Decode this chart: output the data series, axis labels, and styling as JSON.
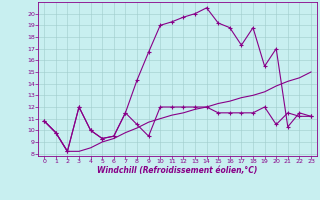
{
  "xlabel": "Windchill (Refroidissement éolien,°C)",
  "xlim": [
    -0.5,
    23.5
  ],
  "ylim": [
    7.8,
    21.0
  ],
  "background_color": "#c8eff0",
  "line_color": "#880088",
  "grid_color": "#a0cccc",
  "line1_x": [
    0,
    1,
    2,
    3,
    4,
    5,
    6,
    7,
    8,
    9,
    10,
    11,
    12,
    13,
    14,
    15,
    16,
    17,
    18,
    19,
    20,
    21,
    22,
    23
  ],
  "line1_y": [
    10.8,
    9.8,
    8.2,
    12.0,
    10.0,
    9.3,
    9.5,
    11.5,
    14.3,
    16.7,
    19.0,
    19.3,
    19.7,
    20.0,
    20.5,
    19.2,
    18.8,
    17.3,
    18.8,
    15.5,
    17.0,
    10.3,
    11.5,
    11.2
  ],
  "line2_x": [
    0,
    1,
    2,
    3,
    4,
    5,
    6,
    7,
    8,
    9,
    10,
    11,
    12,
    13,
    14,
    15,
    16,
    17,
    18,
    19,
    20,
    21,
    22,
    23
  ],
  "line2_y": [
    10.8,
    9.8,
    8.2,
    8.2,
    8.5,
    9.0,
    9.3,
    9.8,
    10.2,
    10.7,
    11.0,
    11.3,
    11.5,
    11.8,
    12.0,
    12.3,
    12.5,
    12.8,
    13.0,
    13.3,
    13.8,
    14.2,
    14.5,
    15.0
  ],
  "line3_x": [
    0,
    1,
    2,
    3,
    4,
    5,
    6,
    7,
    8,
    9,
    10,
    11,
    12,
    13,
    14,
    15,
    16,
    17,
    18,
    19,
    20,
    21,
    22,
    23
  ],
  "line3_y": [
    10.8,
    9.8,
    8.2,
    12.0,
    10.0,
    9.3,
    9.5,
    11.5,
    10.5,
    9.5,
    12.0,
    12.0,
    12.0,
    12.0,
    12.0,
    11.5,
    11.5,
    11.5,
    11.5,
    12.0,
    10.5,
    11.5,
    11.2,
    11.2
  ]
}
